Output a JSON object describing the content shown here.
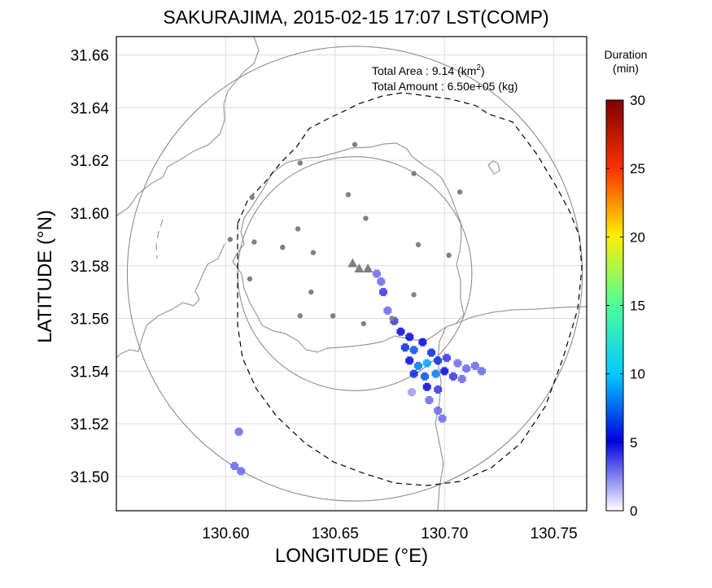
{
  "title": "SAKURAJIMA, 2015-02-15 17:07 LST(COMP)",
  "xlabel": "LONGITUDE (°E)",
  "ylabel": "LATITUDE (°N)",
  "info": {
    "area_label": "Total Area  : 9.14 (km",
    "area_sup": "2",
    "area_close": ")",
    "amount_label": "Total Amount : 6.50e+05 (kg)"
  },
  "colorbar": {
    "title_line1": "Duration",
    "title_line2": "(min)",
    "ticks": [
      "0",
      "5",
      "10",
      "15",
      "20",
      "25",
      "30"
    ],
    "range": [
      0,
      30
    ]
  },
  "chart_data": {
    "type": "map",
    "xlim": [
      130.55,
      130.765
    ],
    "ylim": [
      31.487,
      31.667
    ],
    "xticks": [
      "130.60",
      "130.65",
      "130.70",
      "130.75"
    ],
    "yticks": [
      "31.50",
      "31.52",
      "31.54",
      "31.56",
      "31.58",
      "31.60",
      "31.62",
      "31.64",
      "31.66"
    ],
    "grid": true,
    "vent_markers": [
      {
        "lon": 130.658,
        "lat": 31.581
      },
      {
        "lon": 130.661,
        "lat": 31.579
      },
      {
        "lon": 130.665,
        "lat": 31.579
      }
    ],
    "stations": [
      {
        "lon": 130.659,
        "lat": 31.626
      },
      {
        "lon": 130.634,
        "lat": 31.619
      },
      {
        "lon": 130.686,
        "lat": 31.615
      },
      {
        "lon": 130.612,
        "lat": 31.606
      },
      {
        "lon": 130.656,
        "lat": 31.607
      },
      {
        "lon": 130.707,
        "lat": 31.608
      },
      {
        "lon": 130.664,
        "lat": 31.598
      },
      {
        "lon": 130.633,
        "lat": 31.594
      },
      {
        "lon": 130.602,
        "lat": 31.59
      },
      {
        "lon": 130.613,
        "lat": 31.589
      },
      {
        "lon": 130.688,
        "lat": 31.588
      },
      {
        "lon": 130.626,
        "lat": 31.587
      },
      {
        "lon": 130.64,
        "lat": 31.585
      },
      {
        "lon": 130.702,
        "lat": 31.584
      },
      {
        "lon": 130.611,
        "lat": 31.575
      },
      {
        "lon": 130.639,
        "lat": 31.57
      },
      {
        "lon": 130.686,
        "lat": 31.569
      },
      {
        "lon": 130.634,
        "lat": 31.561
      },
      {
        "lon": 130.649,
        "lat": 31.561
      },
      {
        "lon": 130.663,
        "lat": 31.558
      },
      {
        "lon": 130.676,
        "lat": 31.56
      }
    ],
    "range_circles": [
      {
        "lon": 130.659,
        "lat": 31.577,
        "radius_deg": 0.0535
      },
      {
        "lon": 130.659,
        "lat": 31.577,
        "radius_deg": 0.104
      }
    ],
    "ash_duration_min": [
      {
        "lon": 130.669,
        "lat": 31.577,
        "v": 3
      },
      {
        "lon": 130.671,
        "lat": 31.574,
        "v": 3
      },
      {
        "lon": 130.672,
        "lat": 31.57,
        "v": 4
      },
      {
        "lon": 130.674,
        "lat": 31.563,
        "v": 3
      },
      {
        "lon": 130.677,
        "lat": 31.559,
        "v": 4
      },
      {
        "lon": 130.68,
        "lat": 31.555,
        "v": 5
      },
      {
        "lon": 130.684,
        "lat": 31.553,
        "v": 5
      },
      {
        "lon": 130.682,
        "lat": 31.549,
        "v": 6
      },
      {
        "lon": 130.686,
        "lat": 31.548,
        "v": 7
      },
      {
        "lon": 130.69,
        "lat": 31.551,
        "v": 5
      },
      {
        "lon": 130.694,
        "lat": 31.547,
        "v": 6
      },
      {
        "lon": 130.684,
        "lat": 31.544,
        "v": 5
      },
      {
        "lon": 130.688,
        "lat": 31.542,
        "v": 8
      },
      {
        "lon": 130.692,
        "lat": 31.543,
        "v": 9
      },
      {
        "lon": 130.697,
        "lat": 31.544,
        "v": 6
      },
      {
        "lon": 130.701,
        "lat": 31.545,
        "v": 4
      },
      {
        "lon": 130.706,
        "lat": 31.543,
        "v": 3
      },
      {
        "lon": 130.71,
        "lat": 31.541,
        "v": 3
      },
      {
        "lon": 130.714,
        "lat": 31.542,
        "v": 3
      },
      {
        "lon": 130.717,
        "lat": 31.54,
        "v": 3
      },
      {
        "lon": 130.686,
        "lat": 31.539,
        "v": 6
      },
      {
        "lon": 130.691,
        "lat": 31.538,
        "v": 7
      },
      {
        "lon": 130.696,
        "lat": 31.539,
        "v": 8
      },
      {
        "lon": 130.7,
        "lat": 31.54,
        "v": 5
      },
      {
        "lon": 130.704,
        "lat": 31.538,
        "v": 4
      },
      {
        "lon": 130.708,
        "lat": 31.537,
        "v": 3
      },
      {
        "lon": 130.692,
        "lat": 31.534,
        "v": 5
      },
      {
        "lon": 130.697,
        "lat": 31.533,
        "v": 4
      },
      {
        "lon": 130.693,
        "lat": 31.529,
        "v": 3
      },
      {
        "lon": 130.697,
        "lat": 31.525,
        "v": 3
      },
      {
        "lon": 130.699,
        "lat": 31.522,
        "v": 3
      },
      {
        "lon": 130.685,
        "lat": 31.532,
        "v": 2
      },
      {
        "lon": 130.606,
        "lat": 31.517,
        "v": 3
      },
      {
        "lon": 130.604,
        "lat": 31.504,
        "v": 3
      },
      {
        "lon": 130.607,
        "lat": 31.502,
        "v": 3
      }
    ]
  }
}
